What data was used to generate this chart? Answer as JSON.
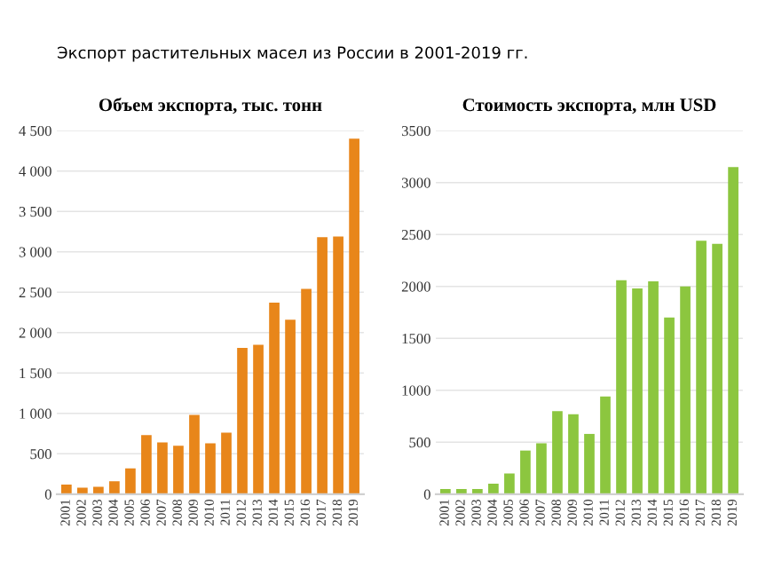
{
  "chart_data": [
    {
      "type": "bar",
      "title": "Объем экспорта, тыс. тонн",
      "annotations": [
        "Экспорт растительных масел из России в 2001-2019 гг."
      ],
      "categories": [
        "2001",
        "2002",
        "2003",
        "2004",
        "2005",
        "2006",
        "2007",
        "2008",
        "2009",
        "2010",
        "2011",
        "2012",
        "2013",
        "2014",
        "2015",
        "2016",
        "2017",
        "2018",
        "2019"
      ],
      "values": [
        120,
        80,
        90,
        160,
        320,
        730,
        640,
        600,
        980,
        630,
        760,
        1810,
        1850,
        2370,
        2160,
        2540,
        3180,
        3190,
        4400
      ],
      "color": "#e8861a",
      "ylim": [
        0,
        4500
      ],
      "yticks": [
        0,
        500,
        {
          "value": 1000,
          "label": "1 000"
        },
        {
          "value": 1500,
          "label": "1 500"
        },
        {
          "value": 2000,
          "label": "2 000"
        },
        {
          "value": 2500,
          "label": "2 500"
        },
        {
          "value": 3000,
          "label": "3 000"
        },
        {
          "value": 3500,
          "label": "3 500"
        },
        {
          "value": 4000,
          "label": "4 000"
        },
        {
          "value": 4500,
          "label": "4 500"
        }
      ],
      "grid": "y"
    },
    {
      "type": "bar",
      "title": "Стоимость экспорта, млн USD",
      "categories": [
        "2001",
        "2002",
        "2003",
        "2004",
        "2005",
        "2006",
        "2007",
        "2008",
        "2009",
        "2010",
        "2011",
        "2012",
        "2013",
        "2014",
        "2015",
        "2016",
        "2017",
        "2018",
        "2019"
      ],
      "values": [
        50,
        50,
        50,
        100,
        200,
        420,
        490,
        800,
        770,
        580,
        940,
        2060,
        1980,
        2050,
        1700,
        2000,
        2440,
        2410,
        3150
      ],
      "color": "#8cc63f",
      "ylim": [
        0,
        3500
      ],
      "yticks": [
        0,
        500,
        1000,
        1500,
        2000,
        2500,
        3000,
        3500
      ],
      "grid": "y"
    }
  ]
}
